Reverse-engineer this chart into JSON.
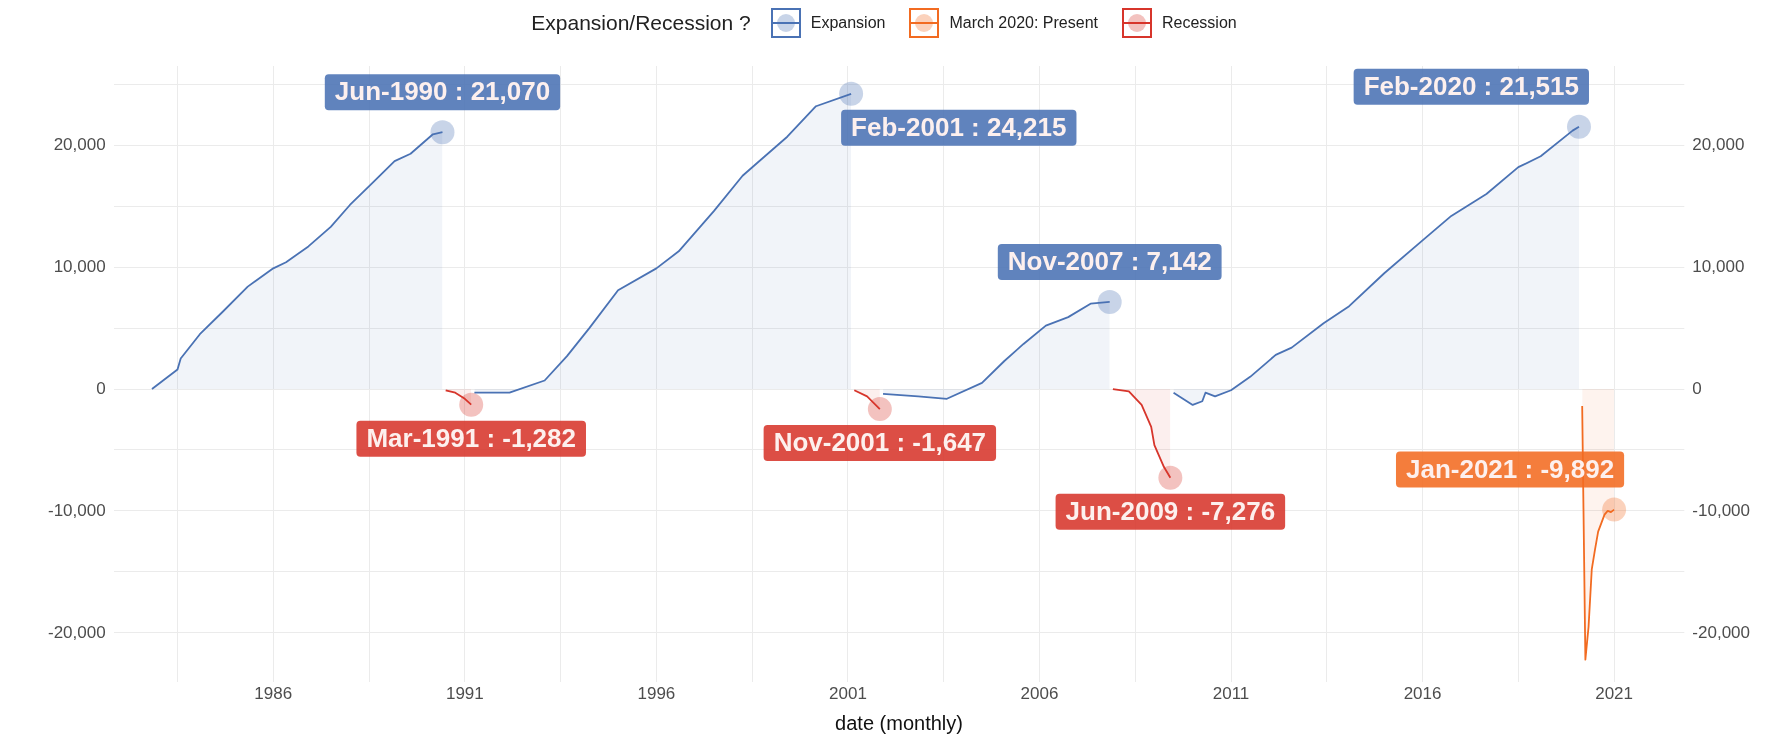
{
  "chart_data": {
    "type": "area",
    "xlabel": "date (monthly)",
    "legend_title": "Expansion/Recession ?",
    "legend": "top",
    "grid": true,
    "xlim": [
      "1981-11",
      "2022-11"
    ],
    "xticks": [
      {
        "value": "1983-07",
        "label": null
      },
      "1986",
      {
        "value": "1988-07",
        "label": null
      },
      "1991",
      {
        "value": "1993-07",
        "label": null
      },
      "1996",
      {
        "value": "1998-07",
        "label": null
      },
      "2001",
      {
        "value": "2003-07",
        "label": null
      },
      "2006",
      {
        "value": "2008-07",
        "label": null
      },
      "2011",
      {
        "value": "2013-07",
        "label": null
      },
      "2016",
      {
        "value": "2018-07",
        "label": null
      },
      "2021"
    ],
    "ylim": [
      -24000,
      26500
    ],
    "yticks": [
      {
        "value": -20000,
        "label": "-20,000"
      },
      {
        "value": -15000,
        "label": null
      },
      {
        "value": -10000,
        "label": "-10,000"
      },
      {
        "value": -5000,
        "label": null
      },
      0,
      {
        "value": 5000,
        "label": null
      },
      {
        "value": 10000,
        "label": "10,000"
      },
      {
        "value": 15000,
        "label": null
      },
      {
        "value": 20000,
        "label": "20,000"
      },
      {
        "value": 25000,
        "label": null
      }
    ],
    "y2lim": [
      -24000,
      26500
    ],
    "y2ticks": [
      {
        "value": -20000,
        "label": "-20,000"
      },
      {
        "value": -10000,
        "label": "-10,000"
      },
      0,
      {
        "value": 10000,
        "label": "10,000"
      },
      {
        "value": 20000,
        "label": "20,000"
      }
    ],
    "series": [
      {
        "name": "Expansion",
        "color": "#4a72b4",
        "x": [
          "1982-11",
          "1983-07",
          "1983-08",
          "1984-02",
          "1984-09",
          "1985-05",
          "1986-01",
          "1986-05",
          "1986-12",
          "1987-07",
          "1988-01",
          "1988-08",
          "1989-03",
          "1989-08",
          "1990-03",
          "1990-06",
          "1990-07",
          "1991-04",
          "1992-03",
          "1993-02",
          "1993-09",
          "1994-04",
          "1995-01",
          "1996-01",
          "1996-08",
          "1997-07",
          "1998-04",
          "1999-06",
          "2000-03",
          "2001-02",
          "2001-03",
          "2001-12",
          "2002-11",
          "2003-08",
          "2004-07",
          "2005-02",
          "2005-08",
          "2006-03",
          "2006-10",
          "2007-05",
          "2007-11",
          "2007-12",
          "2009-07",
          "2010-01",
          "2010-04",
          "2010-05",
          "2010-08",
          "2011-01",
          "2011-07",
          "2012-03",
          "2012-08",
          "2013-06",
          "2014-02",
          "2015-01",
          "2016-01",
          "2016-10",
          "2017-09",
          "2018-07",
          "2019-02",
          "2019-12",
          "2020-02"
        ],
        "values": [
          0,
          1600,
          2500,
          4500,
          6300,
          8400,
          9900,
          10400,
          11700,
          13300,
          15100,
          16900,
          18700,
          19300,
          20900,
          21070,
          null,
          -300,
          -300,
          700,
          2700,
          5000,
          8100,
          9900,
          11300,
          14600,
          17500,
          20700,
          23200,
          24215,
          null,
          -400,
          -600,
          -800,
          500,
          2300,
          3700,
          5200,
          5900,
          7000,
          7142,
          null,
          -300,
          -1300,
          -1000,
          -300,
          -600,
          -100,
          1000,
          2800,
          3400,
          5400,
          6800,
          9500,
          12200,
          14200,
          16000,
          18200,
          19100,
          21200,
          21515
        ]
      },
      {
        "name": "March 2020: Present",
        "color": "#f26b21",
        "x": [
          "2020-03",
          "2020-04",
          "2020-05",
          "2020-06",
          "2020-07",
          "2020-08",
          "2020-09",
          "2020-10",
          "2020-11",
          "2020-12",
          "2021-01"
        ],
        "values": [
          -1400,
          -22200,
          -19500,
          -14800,
          -13200,
          -11700,
          -11000,
          -10300,
          -10000,
          -10100,
          -9892
        ]
      },
      {
        "name": "Recession",
        "color": "#d7352b",
        "x": [
          "1990-07",
          "1990-10",
          "1991-01",
          "1991-03",
          "1991-04",
          "2001-03",
          "2001-07",
          "2001-11",
          "2001-12",
          "2007-12",
          "2008-05",
          "2008-09",
          "2008-12",
          "2009-01",
          "2009-04",
          "2009-06"
        ],
        "values": [
          -100,
          -300,
          -800,
          -1282,
          null,
          -100,
          -600,
          -1647,
          null,
          0,
          -200,
          -1300,
          -3100,
          -4600,
          -6400,
          -7276
        ]
      }
    ],
    "annotations": [
      {
        "text": "Jun-1990 : 21,070",
        "x": "1990-06",
        "y": 21070
      },
      {
        "text": "Mar-1991 : -1,282",
        "x": "1991-03",
        "y": -1282
      },
      {
        "text": "Feb-2001 : 24,215",
        "x": "2001-02",
        "y": 24215
      },
      {
        "text": "Nov-2001 : -1,647",
        "x": "2001-11",
        "y": -1647
      },
      {
        "text": "Nov-2007 : 7,142",
        "x": "2007-11",
        "y": 7142
      },
      {
        "text": "Jun-2009 : -7,276",
        "x": "2009-06",
        "y": -7276
      },
      {
        "text": "Feb-2020 : 21,515",
        "x": "2020-02",
        "y": 21515
      },
      {
        "text": "Jan-2021 : -9,892",
        "x": "2021-01",
        "y": -9892
      }
    ]
  }
}
